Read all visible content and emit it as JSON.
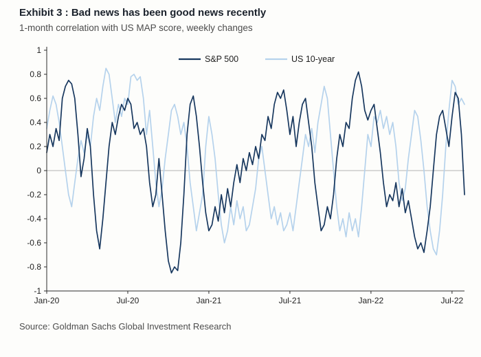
{
  "header": {
    "title": "Exhibit 3 : Bad news has been good news recently",
    "subtitle": "1-month correlation with US MAP score, weekly changes"
  },
  "footer": {
    "source": "Source: Goldman Sachs Global Investment Research"
  },
  "chart_data": {
    "type": "line",
    "title": "Exhibit 3 : Bad news has been good news recently",
    "subtitle": "1-month correlation with US MAP score, weekly changes",
    "frequency": "weekly",
    "ylim": [
      -1,
      1
    ],
    "y_ticks": [
      1,
      0.8,
      0.6,
      0.4,
      0.2,
      0,
      -0.2,
      -0.4,
      -0.6,
      -0.8,
      -1
    ],
    "x_tick_indices": [
      0,
      26,
      52,
      78,
      104,
      130
    ],
    "x_tick_labels": [
      "Jan-20",
      "Jul-20",
      "Jan-21",
      "Jul-21",
      "Jan-22",
      "Jul-22"
    ],
    "zero_line": true,
    "grid": false,
    "legend_position": "top-center",
    "colors": {
      "sp500": "#17375e",
      "us10y": "#b5d2ec",
      "axis": "#2b2b2b",
      "zero_line": "#b3b3b3"
    },
    "series": [
      {
        "name": "S&P 500",
        "color_key": "sp500",
        "values": [
          0.15,
          0.3,
          0.2,
          0.35,
          0.25,
          0.6,
          0.7,
          0.75,
          0.72,
          0.6,
          0.3,
          -0.05,
          0.1,
          0.35,
          0.2,
          -0.2,
          -0.5,
          -0.65,
          -0.4,
          -0.1,
          0.2,
          0.4,
          0.3,
          0.45,
          0.55,
          0.5,
          0.6,
          0.55,
          0.35,
          0.4,
          0.3,
          0.35,
          0.2,
          -0.1,
          -0.3,
          -0.2,
          0.1,
          -0.2,
          -0.5,
          -0.75,
          -0.85,
          -0.8,
          -0.83,
          -0.6,
          -0.2,
          0.3,
          0.55,
          0.62,
          0.45,
          0.2,
          -0.1,
          -0.35,
          -0.5,
          -0.45,
          -0.3,
          -0.42,
          -0.2,
          -0.35,
          -0.15,
          -0.3,
          -0.1,
          0.05,
          -0.1,
          0.1,
          0,
          0.15,
          0.05,
          0.2,
          0.1,
          0.3,
          0.25,
          0.45,
          0.35,
          0.55,
          0.65,
          0.6,
          0.67,
          0.5,
          0.3,
          0.45,
          0.2,
          0.4,
          0.55,
          0.6,
          0.4,
          0.2,
          -0.1,
          -0.3,
          -0.5,
          -0.45,
          -0.3,
          -0.4,
          -0.2,
          0.1,
          0.3,
          0.2,
          0.4,
          0.35,
          0.6,
          0.75,
          0.82,
          0.7,
          0.5,
          0.42,
          0.5,
          0.55,
          0.35,
          0.15,
          -0.1,
          -0.3,
          -0.2,
          -0.25,
          -0.1,
          -0.3,
          -0.15,
          -0.35,
          -0.25,
          -0.4,
          -0.55,
          -0.65,
          -0.6,
          -0.68,
          -0.5,
          -0.3,
          0,
          0.3,
          0.45,
          0.5,
          0.35,
          0.2,
          0.45,
          0.65,
          0.6,
          0.3,
          -0.2
        ]
      },
      {
        "name": "US 10-year",
        "color_key": "us10y",
        "values": [
          0.35,
          0.5,
          0.62,
          0.55,
          0.4,
          0.2,
          0,
          -0.2,
          -0.3,
          -0.1,
          0.1,
          0.25,
          0.15,
          0.3,
          0.2,
          0.45,
          0.6,
          0.5,
          0.7,
          0.85,
          0.8,
          0.6,
          0.4,
          0.55,
          0.45,
          0.6,
          0.55,
          0.78,
          0.8,
          0.75,
          0.78,
          0.6,
          0.3,
          0.5,
          0.2,
          -0.1,
          -0.3,
          -0.15,
          0.1,
          0.3,
          0.5,
          0.55,
          0.45,
          0.3,
          0.4,
          0.2,
          -0.1,
          -0.3,
          -0.5,
          -0.35,
          -0.2,
          0.2,
          0.45,
          0.3,
          0.1,
          -0.2,
          -0.45,
          -0.6,
          -0.5,
          -0.3,
          -0.45,
          -0.25,
          -0.4,
          -0.3,
          -0.5,
          -0.45,
          -0.3,
          -0.15,
          0.1,
          0.2,
          0,
          -0.2,
          -0.4,
          -0.3,
          -0.45,
          -0.35,
          -0.5,
          -0.45,
          -0.35,
          -0.5,
          -0.3,
          -0.1,
          0.1,
          0.3,
          0.2,
          0.35,
          0.15,
          0.4,
          0.55,
          0.7,
          0.6,
          0.3,
          0,
          -0.3,
          -0.5,
          -0.4,
          -0.55,
          -0.35,
          -0.5,
          -0.4,
          -0.55,
          -0.3,
          0,
          0.3,
          0.2,
          0.45,
          0.4,
          0.5,
          0.35,
          0.45,
          0.3,
          0.4,
          0.2,
          -0.1,
          -0.25,
          -0.15,
          0.1,
          0.3,
          0.5,
          0.45,
          0.25,
          0,
          -0.3,
          -0.5,
          -0.65,
          -0.7,
          -0.5,
          -0.2,
          0.2,
          0.5,
          0.75,
          0.7,
          0.55,
          0.6,
          0.55
        ]
      }
    ]
  }
}
